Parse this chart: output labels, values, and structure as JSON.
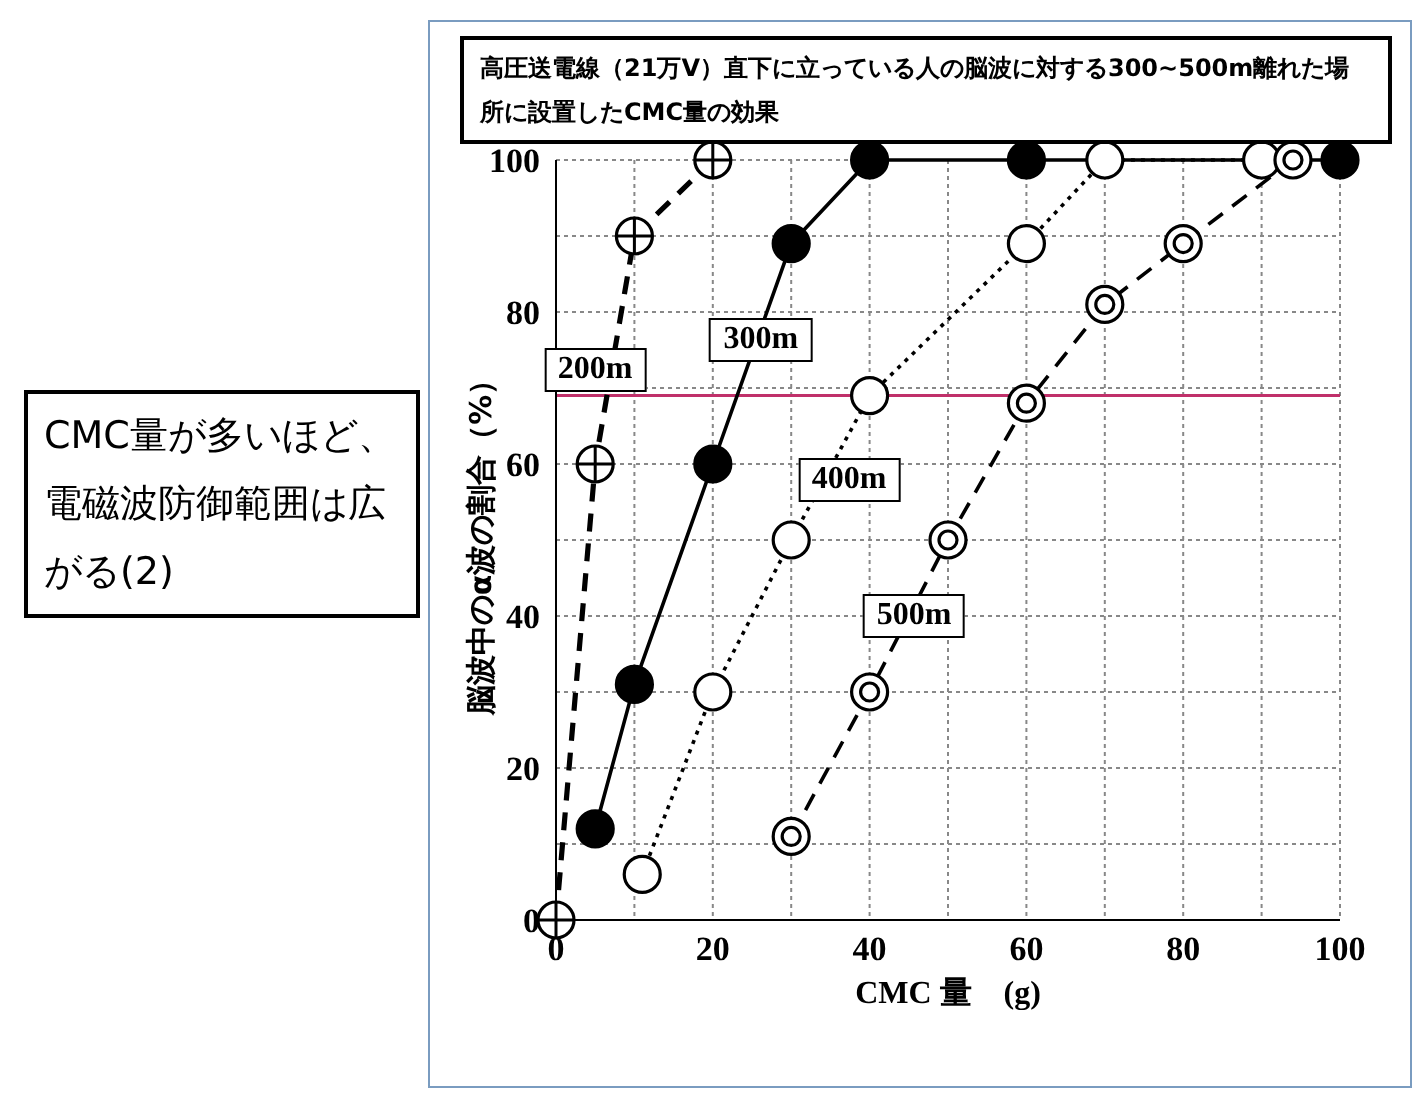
{
  "chart_data": {
    "type": "line",
    "title": "高圧送電線（21万V）直下に立っている人の脳波に対する300~500m離れた場所に設置したCMC量の効果",
    "xlabel": "CMC 量　(g)",
    "ylabel": "脳波中のα波の割合（%）",
    "annotations": [
      "CMC量が多いほど、電磁波防御範囲は広がる(2)"
    ],
    "series": [
      {
        "name": "200m",
        "color": "#000000",
        "x": [
          0,
          5,
          10,
          20
        ],
        "values": [
          0,
          60,
          90,
          100
        ],
        "line_style": "dashed"
      },
      {
        "name": "300m",
        "color": "#000000",
        "x": [
          5,
          10,
          20,
          30,
          40,
          60,
          100
        ],
        "values": [
          12,
          31,
          60,
          89,
          100,
          100,
          100
        ],
        "line_style": "solid"
      },
      {
        "name": "400m",
        "color": "#000000",
        "x": [
          11,
          20,
          30,
          40,
          60,
          70,
          90
        ],
        "values": [
          6,
          30,
          50,
          69,
          89,
          100,
          100
        ],
        "line_style": "dotted"
      },
      {
        "name": "500m",
        "color": "#000000",
        "x": [
          30,
          40,
          50,
          60,
          70,
          80,
          94
        ],
        "values": [
          11,
          30,
          50,
          68,
          81,
          89,
          100
        ],
        "line_style": "dashed"
      }
    ],
    "xlim": [
      0,
      100
    ],
    "ylim": [
      0,
      100
    ],
    "xticks": [
      0,
      {
        "value": 10,
        "label": null
      },
      20,
      {
        "value": 30,
        "label": null
      },
      40,
      {
        "value": 50,
        "label": null
      },
      60,
      {
        "value": 70,
        "label": null
      },
      80,
      {
        "value": 90,
        "label": null
      },
      100
    ],
    "yticks": [
      0,
      {
        "value": 10,
        "label": null
      },
      20,
      {
        "value": 30,
        "label": null
      },
      40,
      {
        "value": 50,
        "label": null
      },
      60,
      {
        "value": 70,
        "label": null
      },
      80,
      {
        "value": 90,
        "label": null
      },
      100
    ],
    "ref_lines": [
      {
        "axis": "y",
        "value": 69,
        "color": "#c0306a"
      }
    ],
    "grid": true,
    "marker": "circle"
  }
}
